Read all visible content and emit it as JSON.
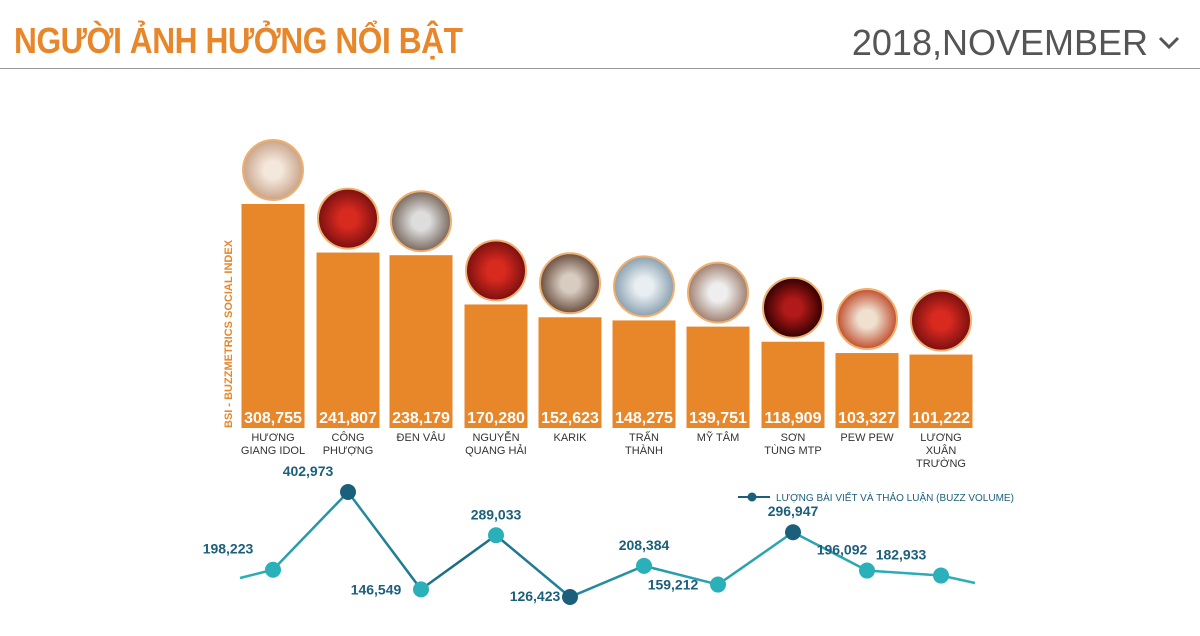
{
  "header": {
    "title": "NGƯỜI ẢNH HƯỞNG NỔI BẬT",
    "period": "2018,NOVEMBER"
  },
  "colors": {
    "bar": "#e8862a",
    "line_start": "#2ab0b8",
    "line_end": "#1c5f7a",
    "label": "#1c5f7a"
  },
  "chart_data": [
    {
      "type": "bar",
      "ylabel": "BSI - BUZZMETRICS SOCIAL INDEX",
      "categories": [
        [
          "HƯƠNG",
          "GIANG IDOL"
        ],
        [
          "CÔNG",
          "PHƯỢNG"
        ],
        [
          "ĐEN VÂU"
        ],
        [
          "NGUYỄN",
          "QUANG HẢI"
        ],
        [
          "KARIK"
        ],
        [
          "TRẤN",
          "THÀNH"
        ],
        [
          "MỸ TÂM"
        ],
        [
          "SƠN",
          "TÙNG MTP"
        ],
        [
          "PEW PEW"
        ],
        [
          "LƯƠNG",
          "XUÂN",
          "TRƯỜNG"
        ]
      ],
      "values": [
        308755,
        241807,
        238179,
        170280,
        152623,
        148275,
        139751,
        118909,
        103327,
        101222
      ],
      "value_labels": [
        "308,755",
        "241,807",
        "238,179",
        "170,280",
        "152,623",
        "148,275",
        "139,751",
        "118,909",
        "103,327",
        "101,222"
      ]
    },
    {
      "type": "line",
      "legend": "LƯỢNG BÀI VIẾT VÀ THẢO LUẬN (BUZZ VOLUME)",
      "legend_position": "top-right",
      "values": [
        198223,
        402973,
        146549,
        289033,
        126423,
        208384,
        159212,
        296947,
        196092,
        182933
      ],
      "value_labels": [
        "198,223",
        "402,973",
        "146,549",
        "289,033",
        "126,423",
        "208,384",
        "159,212",
        "296,947",
        "196,092",
        "182,933"
      ]
    }
  ]
}
